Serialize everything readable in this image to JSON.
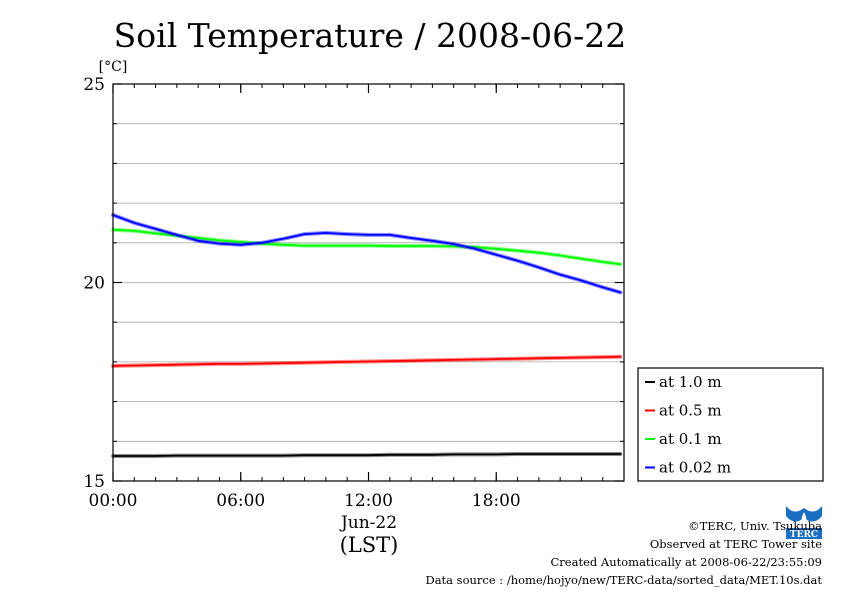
{
  "chart_data": {
    "type": "line",
    "title": "Soil Temperature / 2008-06-22",
    "ylabel": "[°C]",
    "xlabel": "(LST)",
    "date_label": "Jun-22",
    "ylim": [
      15,
      25
    ],
    "xlim": [
      "00:00",
      "24:00"
    ],
    "y_ticks": [
      15,
      20,
      25
    ],
    "y_minor_step": 1,
    "x_ticks": [
      "00:00",
      "06:00",
      "12:00",
      "18:00"
    ],
    "x_minor_step_hours": 1,
    "grid": true,
    "legend_position": "right",
    "x_hours": [
      0,
      1,
      2,
      3,
      4,
      5,
      6,
      7,
      8,
      9,
      10,
      11,
      12,
      13,
      14,
      15,
      16,
      17,
      18,
      19,
      20,
      21,
      22,
      23,
      23.83
    ],
    "series": [
      {
        "name": "at 1.0 m",
        "color": "#000000",
        "values": [
          15.63,
          15.63,
          15.63,
          15.64,
          15.64,
          15.64,
          15.64,
          15.64,
          15.64,
          15.65,
          15.65,
          15.65,
          15.65,
          15.66,
          15.66,
          15.66,
          15.67,
          15.67,
          15.67,
          15.68,
          15.68,
          15.68,
          15.68,
          15.68,
          15.68
        ]
      },
      {
        "name": "at 0.5 m",
        "color": "#ff0000",
        "values": [
          17.9,
          17.91,
          17.92,
          17.93,
          17.94,
          17.95,
          17.95,
          17.96,
          17.97,
          17.98,
          17.99,
          18.0,
          18.01,
          18.02,
          18.03,
          18.04,
          18.05,
          18.06,
          18.07,
          18.08,
          18.09,
          18.1,
          18.11,
          18.12,
          18.13
        ]
      },
      {
        "name": "at 0.1 m",
        "color": "#00ff00",
        "values": [
          21.33,
          21.3,
          21.24,
          21.18,
          21.12,
          21.06,
          21.02,
          20.98,
          20.95,
          20.93,
          20.93,
          20.93,
          20.93,
          20.92,
          20.92,
          20.92,
          20.91,
          20.89,
          20.85,
          20.8,
          20.75,
          20.68,
          20.6,
          20.52,
          20.46
        ]
      },
      {
        "name": "at 0.02 m",
        "color": "#0000ff",
        "values": [
          21.7,
          21.5,
          21.35,
          21.2,
          21.05,
          20.98,
          20.95,
          21.0,
          21.1,
          21.22,
          21.25,
          21.22,
          21.2,
          21.2,
          21.12,
          21.05,
          20.97,
          20.85,
          20.7,
          20.55,
          20.38,
          20.2,
          20.05,
          19.88,
          19.75
        ]
      }
    ]
  },
  "credits": {
    "copyright": "©TERC, Univ. Tsukuba",
    "observed": "Observed at TERC Tower site",
    "created": "Created Automatically at 2008-06-22/23:55:09",
    "source": "Data source : /home/hojyo/new/TERC-data/sorted_data/MET.10s.dat"
  },
  "logo": {
    "icon": "terc-logo-icon",
    "text": "TERC",
    "color": "#1a6fc2"
  }
}
